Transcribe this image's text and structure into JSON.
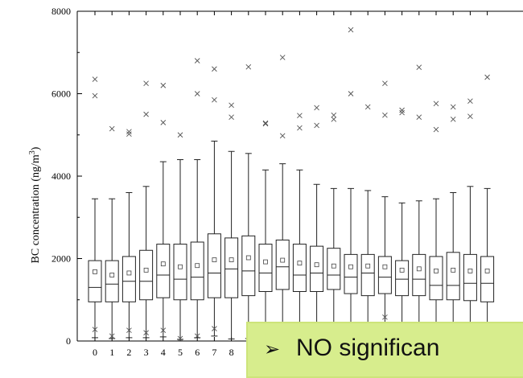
{
  "chart_data": {
    "type": "box",
    "ylabel": "BC concentration (ng/m",
    "ylabel_sup": "3",
    "ylabel_end": ")",
    "ylim": [
      0,
      8000
    ],
    "yticks": [
      0,
      2000,
      4000,
      6000,
      8000
    ],
    "xtick_labels": [
      "0",
      "1",
      "2",
      "3",
      "4",
      "5",
      "6",
      "7",
      "8"
    ],
    "boxes": [
      {
        "x": 0,
        "whisker_low": 80,
        "q1": 950,
        "median": 1300,
        "q3": 1950,
        "whisker_high": 3450,
        "mean": 1680,
        "outliers": [
          280,
          5950,
          6350
        ]
      },
      {
        "x": 1,
        "whisker_low": 60,
        "q1": 950,
        "median": 1380,
        "q3": 1950,
        "whisker_high": 3450,
        "mean": 1600,
        "outliers": [
          120,
          5150
        ]
      },
      {
        "x": 2,
        "whisker_low": 80,
        "q1": 950,
        "median": 1450,
        "q3": 2050,
        "whisker_high": 3600,
        "mean": 1650,
        "outliers": [
          260,
          5020,
          5080
        ]
      },
      {
        "x": 3,
        "whisker_low": 80,
        "q1": 1000,
        "median": 1450,
        "q3": 2200,
        "whisker_high": 3750,
        "mean": 1720,
        "outliers": [
          200,
          5500,
          6250
        ]
      },
      {
        "x": 4,
        "whisker_low": 100,
        "q1": 1050,
        "median": 1600,
        "q3": 2350,
        "whisker_high": 4350,
        "mean": 1870,
        "outliers": [
          260,
          5300,
          6200
        ]
      },
      {
        "x": 5,
        "whisker_low": 40,
        "q1": 1000,
        "median": 1500,
        "q3": 2350,
        "whisker_high": 4400,
        "mean": 1800,
        "outliers": [
          60,
          5000
        ]
      },
      {
        "x": 6,
        "whisker_low": 80,
        "q1": 1000,
        "median": 1550,
        "q3": 2400,
        "whisker_high": 4400,
        "mean": 1830,
        "outliers": [
          120,
          6000,
          6800
        ]
      },
      {
        "x": 7,
        "whisker_low": 120,
        "q1": 1050,
        "median": 1650,
        "q3": 2600,
        "whisker_high": 4850,
        "mean": 1970,
        "outliers": [
          300,
          5850,
          6600
        ]
      },
      {
        "x": 8,
        "whisker_low": 50,
        "q1": 1050,
        "median": 1750,
        "q3": 2500,
        "whisker_high": 4600,
        "mean": 1970,
        "outliers": [
          5430,
          5720
        ]
      },
      {
        "x": 9,
        "whisker_low": 60,
        "q1": 1100,
        "median": 1700,
        "q3": 2550,
        "whisker_high": 4550,
        "mean": 2020,
        "outliers": [
          6650
        ]
      },
      {
        "x": 10,
        "whisker_low": 60,
        "q1": 1200,
        "median": 1650,
        "q3": 2350,
        "whisker_high": 4150,
        "mean": 1920,
        "outliers": [
          5270,
          5290
        ]
      },
      {
        "x": 11,
        "whisker_low": 60,
        "q1": 1250,
        "median": 1800,
        "q3": 2450,
        "whisker_high": 4300,
        "mean": 1960,
        "outliers": [
          4980,
          6880
        ]
      },
      {
        "x": 12,
        "whisker_low": 60,
        "q1": 1200,
        "median": 1600,
        "q3": 2350,
        "whisker_high": 4150,
        "mean": 1890,
        "outliers": [
          5170,
          5470
        ]
      },
      {
        "x": 13,
        "whisker_low": 60,
        "q1": 1200,
        "median": 1650,
        "q3": 2300,
        "whisker_high": 3800,
        "mean": 1850,
        "outliers": [
          5230,
          5660
        ]
      },
      {
        "x": 14,
        "whisker_low": 60,
        "q1": 1250,
        "median": 1600,
        "q3": 2250,
        "whisker_high": 3700,
        "mean": 1820,
        "outliers": [
          5380,
          5480
        ]
      },
      {
        "x": 15,
        "whisker_low": 60,
        "q1": 1150,
        "median": 1550,
        "q3": 2100,
        "whisker_high": 3700,
        "mean": 1800,
        "outliers": [
          6000,
          7550
        ]
      },
      {
        "x": 16,
        "whisker_low": 60,
        "q1": 1100,
        "median": 1650,
        "q3": 2100,
        "whisker_high": 3650,
        "mean": 1820,
        "outliers": [
          5680
        ]
      },
      {
        "x": 17,
        "whisker_low": 60,
        "q1": 1150,
        "median": 1550,
        "q3": 2050,
        "whisker_high": 3500,
        "mean": 1800,
        "outliers": [
          580,
          5480,
          6250
        ]
      },
      {
        "x": 18,
        "whisker_low": 60,
        "q1": 1100,
        "median": 1500,
        "q3": 1950,
        "whisker_high": 3350,
        "mean": 1720,
        "outliers": [
          5540,
          5600
        ]
      },
      {
        "x": 19,
        "whisker_low": 60,
        "q1": 1100,
        "median": 1500,
        "q3": 2100,
        "whisker_high": 3400,
        "mean": 1750,
        "outliers": [
          5430,
          6640
        ]
      },
      {
        "x": 20,
        "whisker_low": 60,
        "q1": 1000,
        "median": 1350,
        "q3": 2050,
        "whisker_high": 3450,
        "mean": 1700,
        "outliers": [
          5130,
          5760
        ]
      },
      {
        "x": 21,
        "whisker_low": 60,
        "q1": 1000,
        "median": 1350,
        "q3": 2150,
        "whisker_high": 3600,
        "mean": 1720,
        "outliers": [
          5380,
          5680
        ]
      },
      {
        "x": 22,
        "whisker_low": 60,
        "q1": 980,
        "median": 1400,
        "q3": 2100,
        "whisker_high": 3750,
        "mean": 1700,
        "outliers": [
          5450,
          5820
        ]
      },
      {
        "x": 23,
        "whisker_low": 60,
        "q1": 950,
        "median": 1400,
        "q3": 2050,
        "whisker_high": 3700,
        "mean": 1700,
        "outliers": [
          6400
        ]
      }
    ]
  },
  "callout": {
    "arrow_glyph": "➢",
    "text": "NO significan"
  }
}
